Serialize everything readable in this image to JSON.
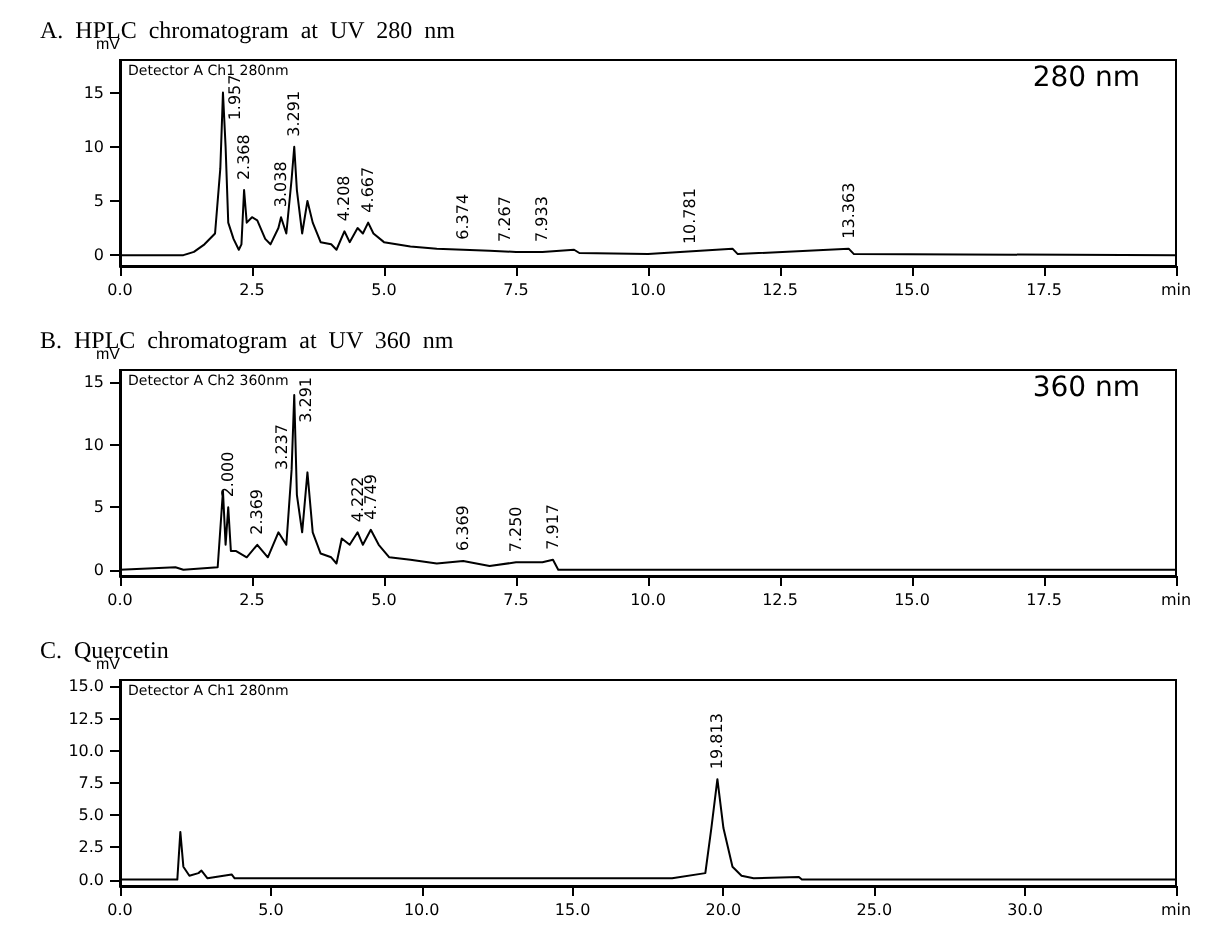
{
  "chart_data": [
    {
      "type": "line",
      "title": "A.  HPLC  chromatogram  at  UV  280  nm",
      "ylabel": "mV",
      "annotations": [
        "Detector A Ch1 280nm",
        "280 nm",
        {
          "text": "1.957",
          "x": 1.95,
          "y": 15
        },
        {
          "text": "2.368",
          "x": 2.35,
          "y": 6
        },
        {
          "text": "3.038",
          "x": 3.05,
          "y": 3.5
        },
        {
          "text": "3.291",
          "x": 3.3,
          "y": 10
        },
        {
          "text": "4.208",
          "x": 4.25,
          "y": 2.2
        },
        {
          "text": "4.667",
          "x": 4.7,
          "y": 3
        },
        {
          "text": "6.374",
          "x": 6.5,
          "y": 0.5
        },
        {
          "text": "7.267",
          "x": 7.3,
          "y": 0.3
        },
        {
          "text": "7.933",
          "x": 8.0,
          "y": 0.3
        },
        {
          "text": "10.781",
          "x": 10.8,
          "y": 0.1
        },
        {
          "text": "13.363",
          "x": 13.8,
          "y": 0.6
        }
      ],
      "series": [
        {
          "color": "#000000",
          "x": [
            0,
            1.2,
            1.4,
            1.6,
            1.8,
            1.9,
            1.95,
            2.0,
            2.05,
            2.15,
            2.25,
            2.3,
            2.35,
            2.4,
            2.5,
            2.6,
            2.75,
            2.85,
            3.0,
            3.05,
            3.15,
            3.25,
            3.3,
            3.35,
            3.45,
            3.55,
            3.65,
            3.8,
            4.0,
            4.1,
            4.25,
            4.35,
            4.5,
            4.6,
            4.7,
            4.8,
            5.0,
            5.5,
            6.0,
            6.5,
            7.0,
            7.5,
            8.0,
            8.6,
            8.7,
            10,
            11.6,
            11.7,
            13.8,
            13.9,
            20
          ],
          "values": [
            0,
            0,
            0.3,
            1,
            2,
            8,
            15,
            10,
            3,
            1.5,
            0.5,
            1,
            6,
            3,
            3.5,
            3.2,
            1.5,
            1,
            2.5,
            3.5,
            2,
            7,
            10,
            6,
            2,
            5,
            3,
            1.2,
            1,
            0.5,
            2.2,
            1.2,
            2.5,
            2,
            3,
            2,
            1.2,
            0.8,
            0.6,
            0.5,
            0.4,
            0.3,
            0.3,
            0.5,
            0.2,
            0.1,
            0.6,
            0.1,
            0.6,
            0.1,
            0
          ]
        }
      ],
      "xlim": [
        0,
        20
      ],
      "ylim": [
        -1,
        18
      ],
      "xticks": [
        {
          "value": 0,
          "label": "0.0"
        },
        2.5,
        {
          "value": 5,
          "label": "5.0"
        },
        7.5,
        {
          "value": 10,
          "label": "10.0"
        },
        12.5,
        {
          "value": 15,
          "label": "15.0"
        },
        17.5,
        {
          "value": 20,
          "label": "min"
        }
      ],
      "yticks": [
        0,
        5,
        10,
        15
      ],
      "grid": false,
      "marker": "none",
      "line_style": "solid"
    },
    {
      "type": "line",
      "title": "B.  HPLC  chromatogram  at  UV  360  nm",
      "ylabel": "mV",
      "annotations": [
        "Detector A Ch2 360nm",
        "360 nm",
        {
          "text": "2.000",
          "x": 2.05,
          "y": 5
        },
        {
          "text": "2.369",
          "x": 2.6,
          "y": 2
        },
        {
          "text": "3.237",
          "x": 3.25,
          "y": 8
        },
        {
          "text": "3.291",
          "x": 3.3,
          "y": 14
        },
        {
          "text": "4.222",
          "x": 4.5,
          "y": 3
        },
        {
          "text": "4.749",
          "x": 4.75,
          "y": 3.2
        },
        {
          "text": "6.369",
          "x": 6.5,
          "y": 0.7
        },
        {
          "text": "7.250",
          "x": 7.5,
          "y": 0.6
        },
        {
          "text": "7.917",
          "x": 8.2,
          "y": 0.8
        }
      ],
      "series": [
        {
          "color": "#000000",
          "x": [
            0,
            1.05,
            1.2,
            1.85,
            1.95,
            2.0,
            2.05,
            2.1,
            2.2,
            2.4,
            2.6,
            2.8,
            3.0,
            3.15,
            3.25,
            3.3,
            3.35,
            3.45,
            3.55,
            3.65,
            3.8,
            4.0,
            4.1,
            4.2,
            4.35,
            4.5,
            4.6,
            4.75,
            4.9,
            5.1,
            5.5,
            6.0,
            6.5,
            7.0,
            7.5,
            8.0,
            8.2,
            8.3,
            20
          ],
          "values": [
            0,
            0.2,
            0,
            0.2,
            6.3,
            2,
            5,
            1.5,
            1.5,
            1,
            2,
            1,
            3,
            2,
            8,
            14,
            6,
            3,
            7.8,
            3,
            1.3,
            1,
            0.5,
            2.5,
            2,
            3,
            2,
            3.2,
            2,
            1,
            0.8,
            0.5,
            0.7,
            0.3,
            0.6,
            0.6,
            0.8,
            0,
            0
          ]
        }
      ],
      "xlim": [
        0,
        20
      ],
      "ylim": [
        -0.5,
        16
      ],
      "xticks": [
        {
          "value": 0,
          "label": "0.0"
        },
        2.5,
        {
          "value": 5,
          "label": "5.0"
        },
        7.5,
        {
          "value": 10,
          "label": "10.0"
        },
        12.5,
        {
          "value": 15,
          "label": "15.0"
        },
        17.5,
        {
          "value": 20,
          "label": "min"
        }
      ],
      "yticks": [
        0,
        5,
        10,
        15
      ],
      "grid": false,
      "marker": "none",
      "line_style": "solid"
    },
    {
      "type": "line",
      "title": "C.  Quercetin",
      "ylabel": "mV",
      "annotations": [
        "Detector A Ch1 280nm",
        {
          "text": "19.813",
          "x": 19.8,
          "y": 7.8
        }
      ],
      "series": [
        {
          "color": "#000000",
          "x": [
            0,
            1.9,
            2.0,
            2.1,
            2.3,
            2.6,
            2.7,
            2.9,
            3.7,
            3.8,
            18.3,
            19.4,
            19.6,
            19.8,
            20.0,
            20.3,
            20.6,
            21,
            22.5,
            22.6,
            35
          ],
          "values": [
            0,
            0,
            3.7,
            1,
            0.3,
            0.5,
            0.7,
            0.1,
            0.4,
            0.1,
            0.1,
            0.5,
            4,
            7.8,
            4,
            1,
            0.3,
            0.1,
            0.2,
            0,
            0
          ]
        }
      ],
      "xlim": [
        0,
        35
      ],
      "ylim": [
        -0.5,
        15.5
      ],
      "xticks": [
        {
          "value": 0,
          "label": "0.0"
        },
        {
          "value": 5,
          "label": "5.0"
        },
        {
          "value": 10,
          "label": "10.0"
        },
        {
          "value": 15,
          "label": "15.0"
        },
        {
          "value": 20,
          "label": "20.0"
        },
        {
          "value": 25,
          "label": "25.0"
        },
        {
          "value": 30,
          "label": "30.0"
        },
        {
          "value": 35,
          "label": "min"
        }
      ],
      "yticks": [
        {
          "value": 0,
          "label": "0.0"
        },
        2.5,
        {
          "value": 5,
          "label": "5.0"
        },
        7.5,
        {
          "value": 10,
          "label": "10.0"
        },
        12.5,
        {
          "value": 15,
          "label": "15.0"
        }
      ],
      "grid": false,
      "marker": "none",
      "line_style": "solid"
    }
  ]
}
